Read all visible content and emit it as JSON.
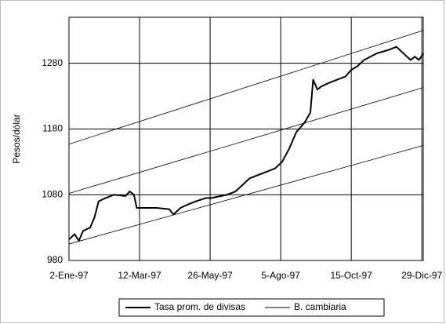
{
  "chart_data": {
    "type": "line",
    "y_label": "Pesos/dólar",
    "x": [
      0,
      4,
      7,
      10,
      15,
      18,
      21,
      26,
      32,
      40,
      43,
      46,
      48,
      51,
      62,
      71,
      74,
      79,
      84,
      90,
      97,
      101,
      112,
      118,
      123,
      128,
      134,
      140,
      146,
      151,
      156,
      161,
      167,
      171,
      173,
      176,
      179,
      184,
      190,
      196,
      200,
      204,
      209,
      218,
      226,
      232,
      237,
      242,
      245,
      248,
      251
    ],
    "series": [
      {
        "name": "Tasa prom. de divisas",
        "color": "#000000",
        "values": [
          1012,
          1020,
          1010,
          1025,
          1030,
          1045,
          1070,
          1075,
          1080,
          1078,
          1085,
          1080,
          1060,
          1060,
          1060,
          1058,
          1050,
          1060,
          1065,
          1070,
          1075,
          1075,
          1080,
          1085,
          1095,
          1105,
          1110,
          1115,
          1120,
          1130,
          1150,
          1175,
          1190,
          1205,
          1255,
          1240,
          1245,
          1250,
          1255,
          1260,
          1270,
          1275,
          1285,
          1295,
          1300,
          1305,
          1295,
          1285,
          1290,
          1285,
          1295
        ]
      }
    ],
    "bands": {
      "name": "B. cambiaria",
      "color": "#000000",
      "x": [
        0,
        251
      ],
      "upper": [
        1157,
        1330
      ],
      "middle": [
        1082,
        1243
      ],
      "lower": [
        1005,
        1155
      ]
    },
    "xlim": [
      0,
      251
    ],
    "ylim": [
      980,
      1350
    ],
    "xticks": [
      {
        "value": 0,
        "label": "2-Ene-97"
      },
      {
        "value": 50,
        "label": "12-Mar-97"
      },
      {
        "value": 100,
        "label": "26-May-97"
      },
      {
        "value": 150,
        "label": "5-Ago-97"
      },
      {
        "value": 200,
        "label": "15-Oct-97"
      },
      {
        "value": 250,
        "label": "29-Dic-97"
      }
    ],
    "yticks": [
      980,
      1080,
      1180,
      1280
    ],
    "grid": true
  }
}
